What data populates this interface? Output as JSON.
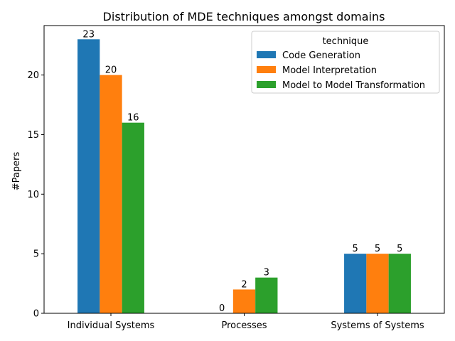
{
  "chart_data": {
    "type": "bar",
    "title": "Distribution of MDE techniques amongst domains",
    "xlabel": "",
    "ylabel": "#Papers",
    "categories": [
      "Individual Systems",
      "Processes",
      "Systems of Systems"
    ],
    "series": [
      {
        "name": "Code Generation",
        "color": "#1f77b4",
        "values": [
          23,
          0,
          5
        ]
      },
      {
        "name": "Model Interpretation",
        "color": "#ff7f0e",
        "values": [
          20,
          2,
          5
        ]
      },
      {
        "name": "Model to Model Transformation",
        "color": "#2ca02c",
        "values": [
          16,
          3,
          5
        ]
      }
    ],
    "ylim": [
      0,
      24.15
    ],
    "yticks": [
      0,
      5,
      10,
      15,
      20
    ],
    "legend": {
      "title": "technique",
      "position": "top-right"
    },
    "grid": false,
    "data_labels": true
  }
}
